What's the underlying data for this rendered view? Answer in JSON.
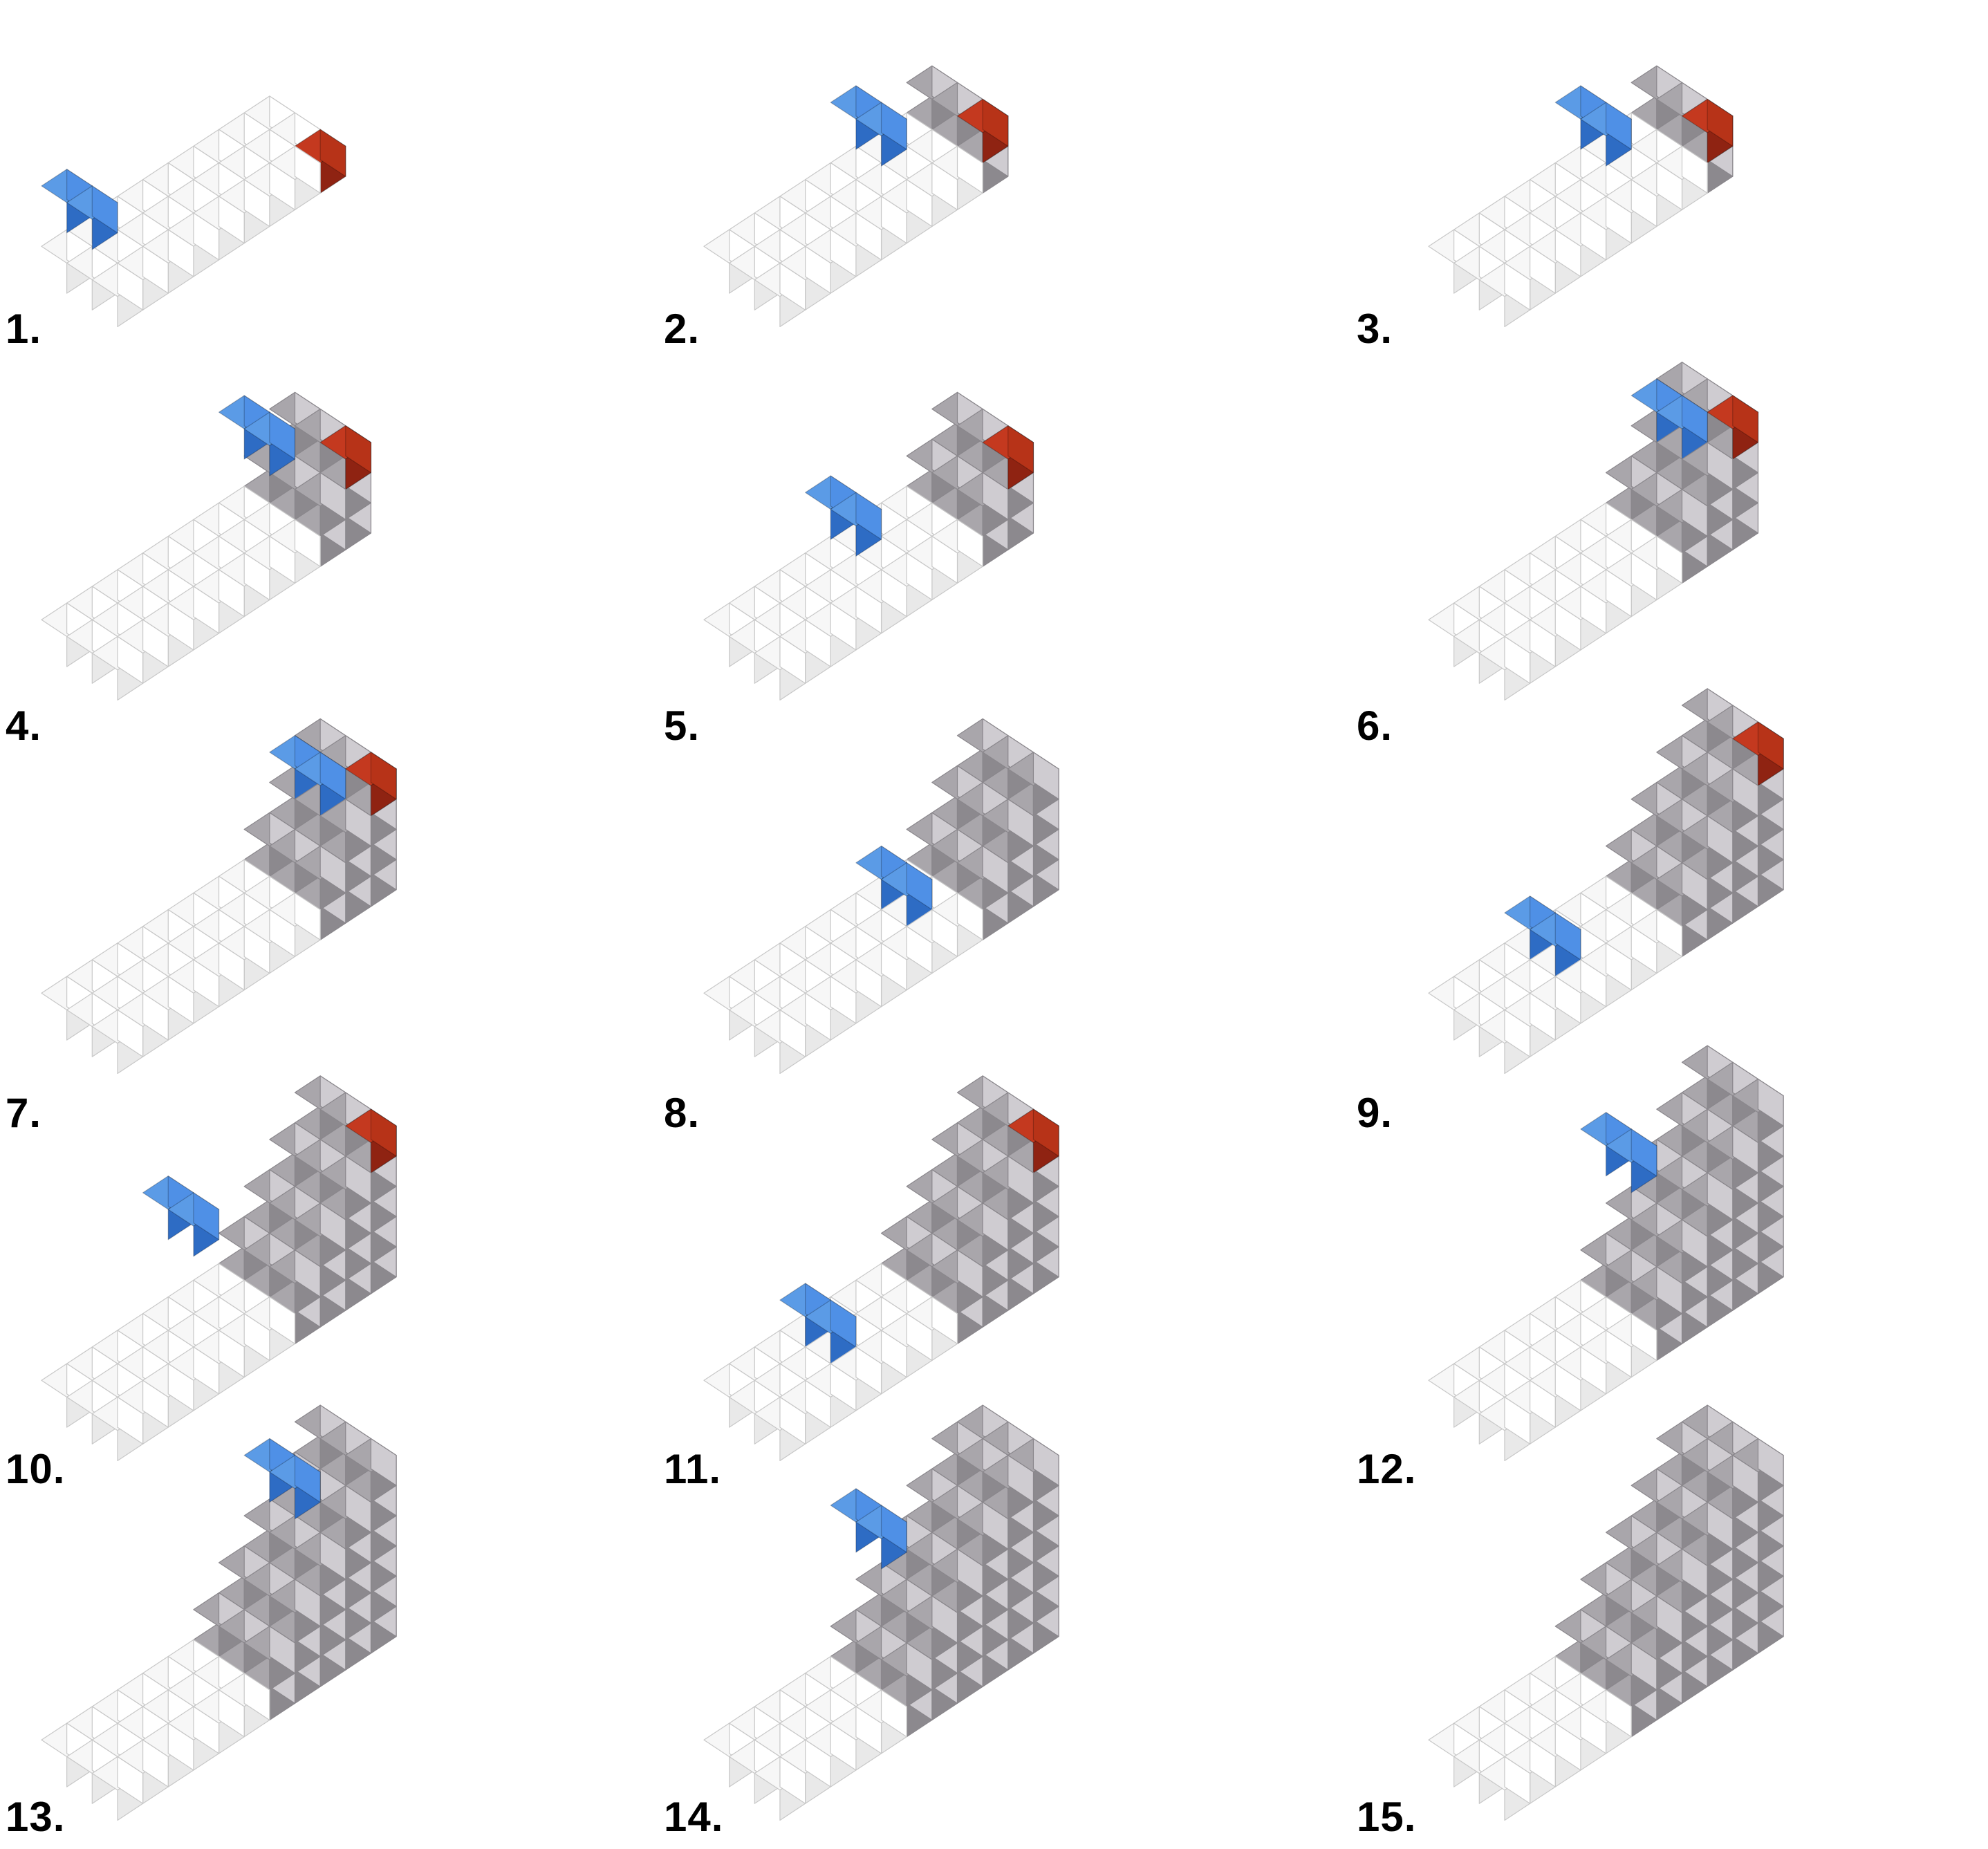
{
  "figure": {
    "description_free": true,
    "colors": {
      "top_white": "#f7f7f7",
      "left_white": "#e9e9e9",
      "right_white": "#ffffff",
      "top_gray": "#a9a6ab",
      "left_gray": "#8c898e",
      "right_gray": "#cfccd1",
      "top_blue": "#5b9be6",
      "left_blue": "#2e6cc4",
      "right_blue": "#4f90e6",
      "top_red": "#c4391f",
      "left_red": "#8f2312",
      "right_red": "#b73318",
      "edge": "#c8c8c8",
      "edge_dark": "#8a878c"
    }
  },
  "steps": [
    {
      "label": "1.",
      "cols": 9,
      "rows": 3,
      "progress": 0.0,
      "blue_col": 0,
      "blue_layer": 2,
      "red": true
    },
    {
      "label": "2.",
      "cols": 9,
      "rows": 3,
      "progress": 0.12,
      "blue_col": 5,
      "blue_layer": 2,
      "red": true
    },
    {
      "label": "3.",
      "cols": 9,
      "rows": 3,
      "progress": 0.22,
      "blue_col": 5,
      "blue_layer": 2,
      "red": true
    },
    {
      "label": "4.",
      "cols": 10,
      "rows": 3,
      "progress": 0.3,
      "blue_col": 7,
      "blue_layer": 3,
      "red": true
    },
    {
      "label": "5.",
      "cols": 10,
      "rows": 3,
      "progress": 0.36,
      "blue_col": 4,
      "blue_layer": 2,
      "red": true
    },
    {
      "label": "6.",
      "cols": 10,
      "rows": 3,
      "progress": 0.42,
      "blue_col": 8,
      "blue_layer": 3,
      "red": true
    },
    {
      "label": "7.",
      "cols": 11,
      "rows": 3,
      "progress": 0.5,
      "blue_col": 9,
      "blue_layer": 3,
      "red": true
    },
    {
      "label": "8.",
      "cols": 11,
      "rows": 3,
      "progress": 0.56,
      "blue_col": 6,
      "blue_layer": 1,
      "red": false
    },
    {
      "label": "9.",
      "cols": 11,
      "rows": 3,
      "progress": 0.62,
      "blue_col": 3,
      "blue_layer": 1,
      "red": true
    },
    {
      "label": "10.",
      "cols": 11,
      "rows": 3,
      "progress": 0.68,
      "blue_col": 4,
      "blue_layer": 4,
      "red": true
    },
    {
      "label": "11.",
      "cols": 11,
      "rows": 3,
      "progress": 0.74,
      "blue_col": 3,
      "blue_layer": 1,
      "red": true
    },
    {
      "label": "12.",
      "cols": 11,
      "rows": 3,
      "progress": 0.82,
      "blue_col": 6,
      "blue_layer": 5,
      "red": false
    },
    {
      "label": "13.",
      "cols": 11,
      "rows": 3,
      "progress": 0.88,
      "blue_col": 8,
      "blue_layer": 5,
      "red": false
    },
    {
      "label": "14.",
      "cols": 11,
      "rows": 3,
      "progress": 0.94,
      "blue_col": 5,
      "blue_layer": 5,
      "red": false
    },
    {
      "label": "15.",
      "cols": 11,
      "rows": 3,
      "progress": 1.0,
      "blue_col": -1,
      "blue_layer": 0,
      "red": false
    }
  ]
}
